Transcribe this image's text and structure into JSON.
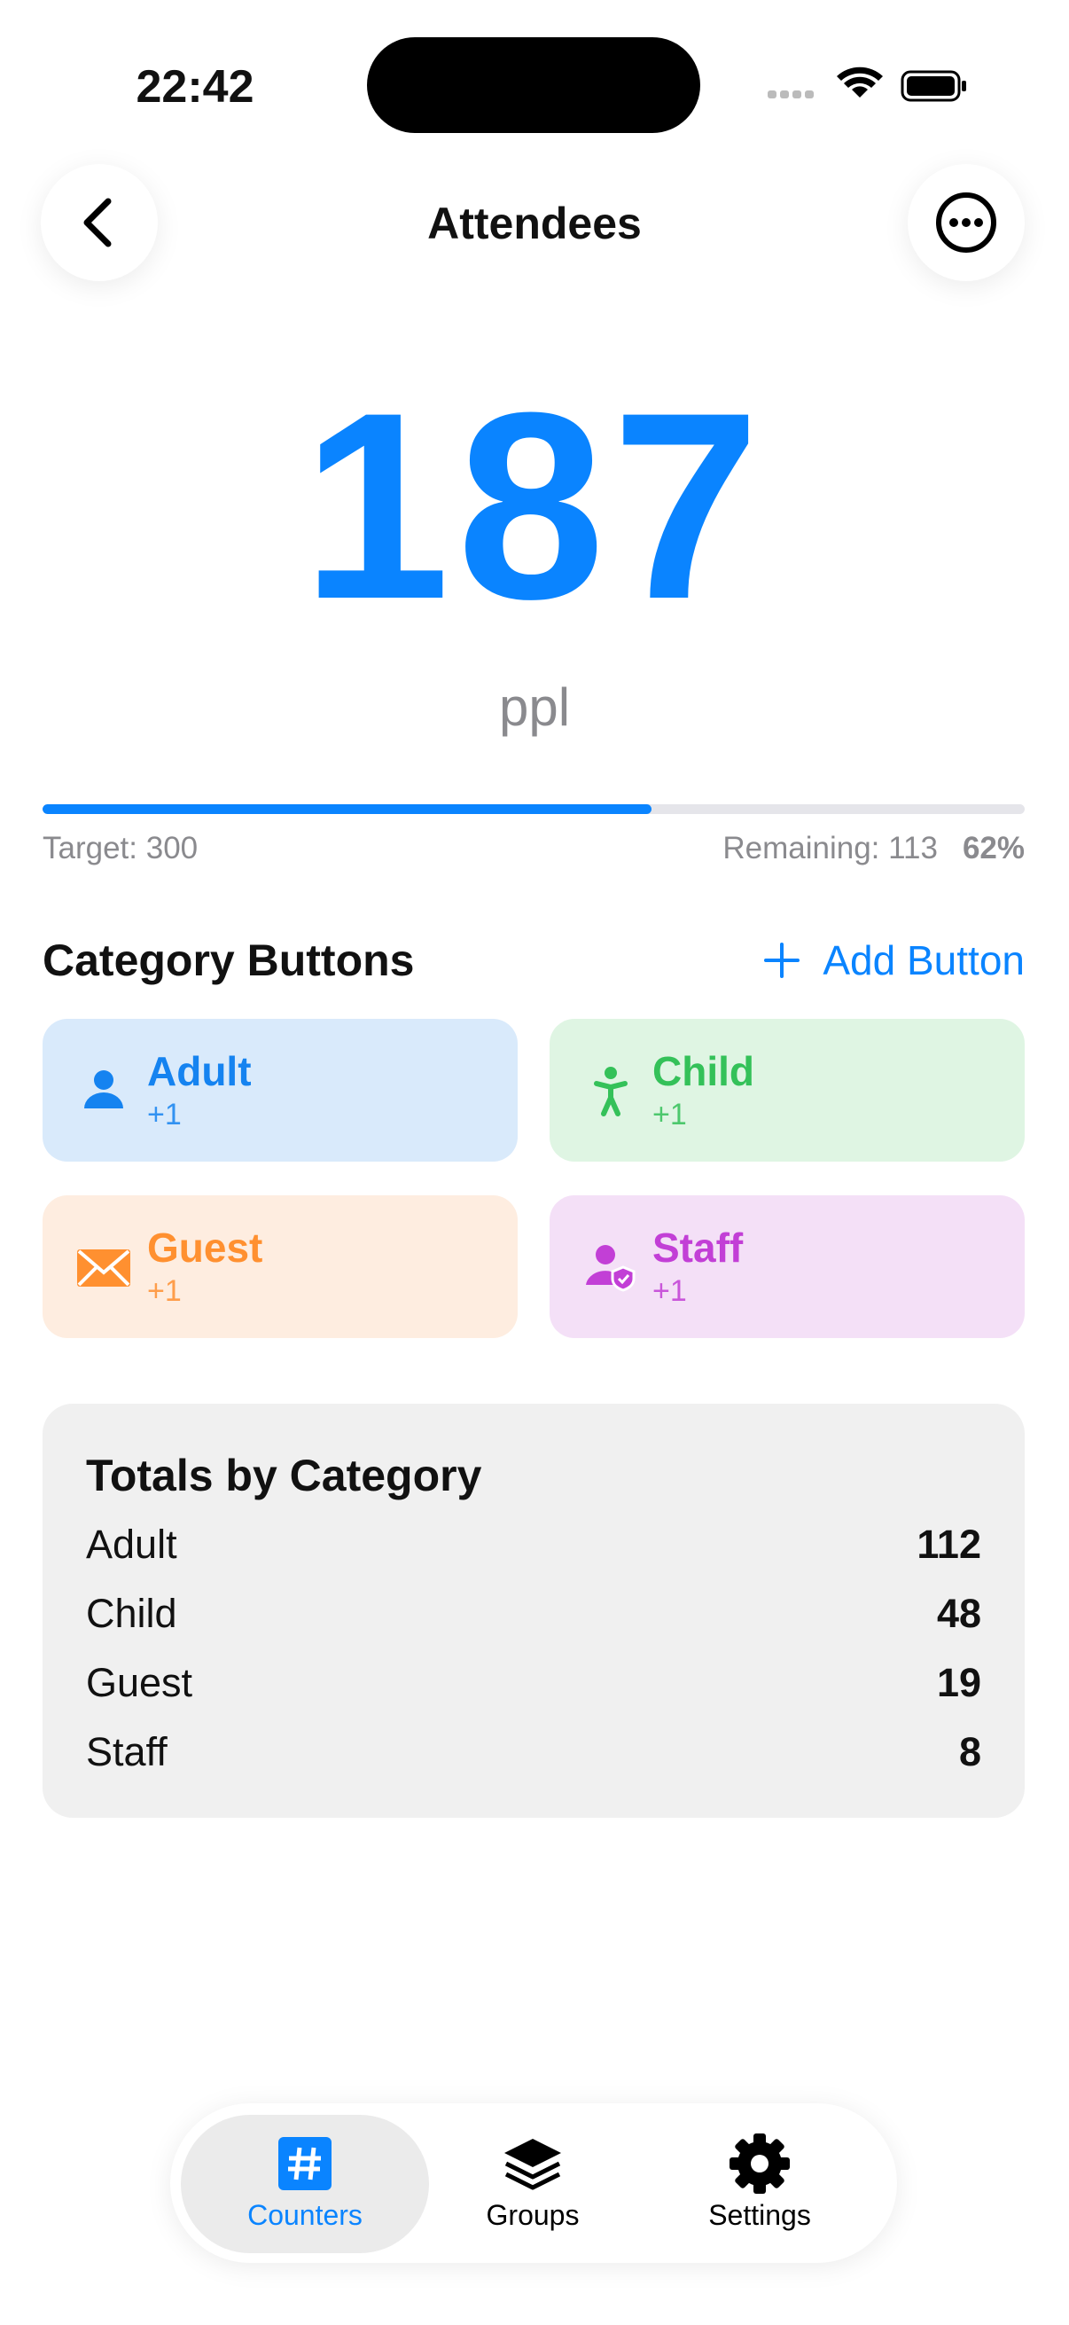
{
  "status": {
    "time": "22:42"
  },
  "header": {
    "title": "Attendees"
  },
  "counter": {
    "value": "187",
    "unit": "ppl"
  },
  "progress": {
    "percent": 62,
    "percent_label": "62%",
    "target_label": "Target: 300",
    "remaining_label": "Remaining: 113",
    "color": "#0A84FF"
  },
  "category_section": {
    "title": "Category Buttons",
    "add_button": "Add Button"
  },
  "category_buttons": [
    {
      "label": "Adult",
      "increment": "+1",
      "color": "#1583F0",
      "background": "#d9eafb"
    },
    {
      "label": "Child",
      "increment": "+1",
      "color": "#34C159",
      "background": "#dff5e3"
    },
    {
      "label": "Guest",
      "increment": "+1",
      "color": "#FF9030",
      "background": "#feede0"
    },
    {
      "label": "Staff",
      "increment": "+1",
      "color": "#C23FD6",
      "background": "#f4e0f7"
    }
  ],
  "totals": {
    "title": "Totals by Category",
    "rows": [
      {
        "label": "Adult",
        "value": "112"
      },
      {
        "label": "Child",
        "value": "48"
      },
      {
        "label": "Guest",
        "value": "19"
      },
      {
        "label": "Staff",
        "value": "8"
      }
    ]
  },
  "tab_bar": {
    "tabs": [
      {
        "label": "Counters",
        "selected": true
      },
      {
        "label": "Groups",
        "selected": false
      },
      {
        "label": "Settings",
        "selected": false
      }
    ]
  }
}
